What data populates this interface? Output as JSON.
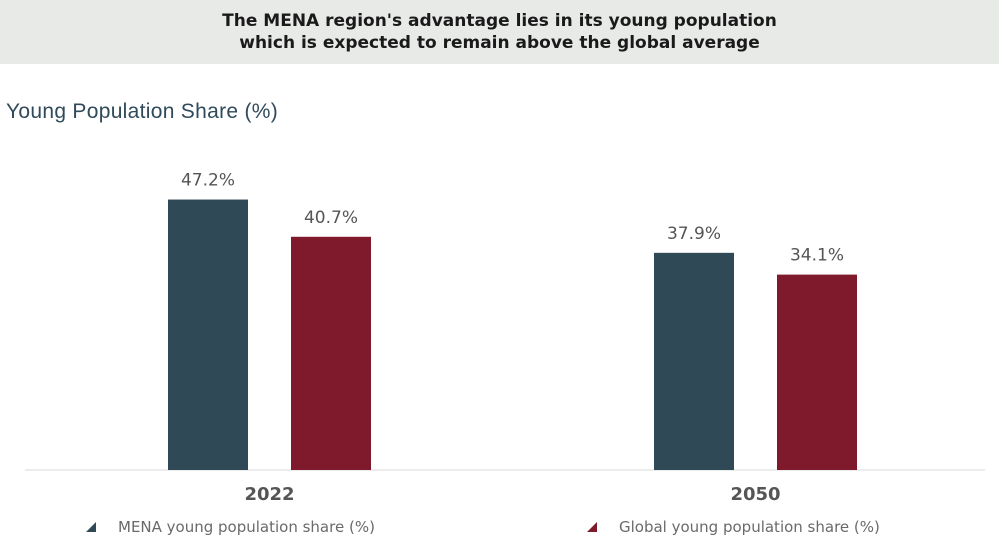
{
  "banner": {
    "line1": "The MENA region's advantage lies in its young population",
    "line2": "which is expected to remain above the global average"
  },
  "chart_data": {
    "type": "bar",
    "title": "Young Population Share (%)",
    "categories": [
      "2022",
      "2050"
    ],
    "series": [
      {
        "name": "MENA young population share (%)",
        "values": [
          47.2,
          37.9
        ],
        "labels": [
          "47.2%",
          "37.9%"
        ],
        "color": "#2f4a56"
      },
      {
        "name": "Global young population share (%)",
        "values": [
          40.7,
          34.1
        ],
        "labels": [
          "40.7%",
          "34.1%"
        ],
        "color": "#7f1a2c"
      }
    ],
    "ylim": [
      0,
      50
    ],
    "grid": false,
    "legend": "bottom"
  }
}
